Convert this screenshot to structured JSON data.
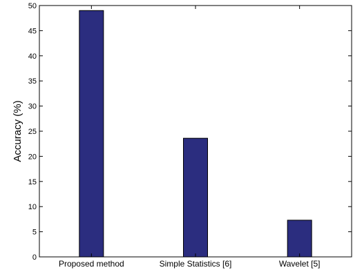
{
  "chart_data": {
    "type": "bar",
    "categories": [
      "Proposed method",
      "Simple Statistics [6]",
      "Wavelet [5]"
    ],
    "values": [
      49,
      23.6,
      7.3
    ],
    "title": "",
    "xlabel": "",
    "ylabel": "Accuracy (%)",
    "ylim": [
      0,
      50
    ],
    "yticks": [
      0,
      5,
      10,
      15,
      20,
      25,
      30,
      35,
      40,
      45,
      50
    ],
    "bar_color": "#2b2d7f",
    "grid": false
  }
}
